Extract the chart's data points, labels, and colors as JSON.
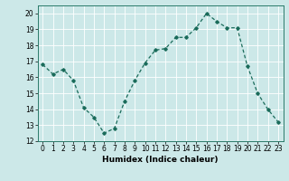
{
  "x": [
    0,
    1,
    2,
    3,
    4,
    5,
    6,
    7,
    8,
    9,
    10,
    11,
    12,
    13,
    14,
    15,
    16,
    17,
    18,
    19,
    20,
    21,
    22,
    23
  ],
  "y": [
    16.8,
    16.2,
    16.5,
    15.8,
    14.1,
    13.5,
    12.5,
    12.8,
    14.5,
    15.8,
    16.9,
    17.7,
    17.8,
    18.5,
    18.5,
    19.1,
    20.0,
    19.5,
    19.1,
    19.1,
    16.7,
    15.0,
    14.0,
    13.2
  ],
  "line_color": "#1a6b5a",
  "marker": "D",
  "marker_size": 1.8,
  "bg_color": "#cce8e8",
  "grid_color": "#ffffff",
  "xlabel": "Humidex (Indice chaleur)",
  "ylim": [
    12,
    20.5
  ],
  "xlim": [
    -0.5,
    23.5
  ],
  "yticks": [
    12,
    13,
    14,
    15,
    16,
    17,
    18,
    19,
    20
  ],
  "xticks": [
    0,
    1,
    2,
    3,
    4,
    5,
    6,
    7,
    8,
    9,
    10,
    11,
    12,
    13,
    14,
    15,
    16,
    17,
    18,
    19,
    20,
    21,
    22,
    23
  ],
  "tick_fontsize": 5.5,
  "label_fontsize": 6.5,
  "linewidth": 0.9
}
